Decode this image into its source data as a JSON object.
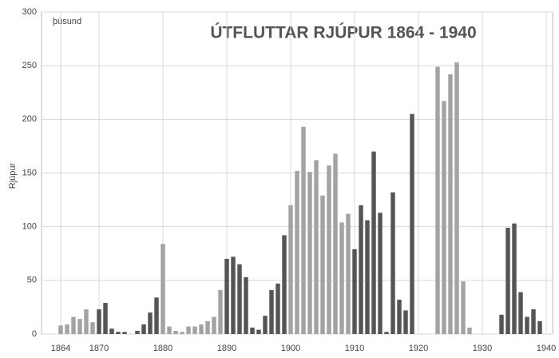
{
  "chart_data": {
    "type": "bar",
    "title": "ÚTFLUTTAR RJÚPUR  1864 - 1940",
    "unit_label": "þúsund",
    "y_label": "Rjúpur",
    "x": [
      1864,
      1865,
      1866,
      1867,
      1868,
      1869,
      1870,
      1871,
      1872,
      1873,
      1874,
      1875,
      1876,
      1877,
      1878,
      1879,
      1880,
      1881,
      1882,
      1883,
      1884,
      1885,
      1886,
      1887,
      1888,
      1889,
      1890,
      1891,
      1892,
      1893,
      1894,
      1895,
      1896,
      1897,
      1898,
      1899,
      1900,
      1901,
      1902,
      1903,
      1904,
      1905,
      1906,
      1907,
      1908,
      1909,
      1910,
      1911,
      1912,
      1913,
      1914,
      1915,
      1916,
      1917,
      1918,
      1919,
      1920,
      1921,
      1922,
      1923,
      1924,
      1925,
      1926,
      1927,
      1928,
      1929,
      1930,
      1931,
      1932,
      1933,
      1934,
      1935,
      1936,
      1937,
      1938,
      1939,
      1940
    ],
    "values": [
      8,
      9,
      16,
      14,
      23,
      11,
      23,
      29,
      5,
      2,
      2,
      0,
      3,
      9,
      20,
      34,
      84,
      7,
      3,
      2,
      7,
      7,
      9,
      12,
      16,
      41,
      70,
      72,
      65,
      53,
      6,
      4,
      17,
      41,
      47,
      92,
      120,
      152,
      193,
      151,
      162,
      129,
      157,
      168,
      104,
      112,
      79,
      120,
      106,
      170,
      113,
      2,
      132,
      32,
      22,
      205,
      0,
      0,
      0,
      249,
      217,
      242,
      253,
      49,
      6,
      0,
      0,
      0,
      0,
      18,
      99,
      103,
      39,
      16,
      23,
      12,
      0
    ],
    "colors": [
      "#a3a3a3",
      "#a3a3a3",
      "#a3a3a3",
      "#a3a3a3",
      "#a3a3a3",
      "#a3a3a3",
      "#555555",
      "#555555",
      "#555555",
      "#555555",
      "#555555",
      "#555555",
      "#555555",
      "#555555",
      "#555555",
      "#555555",
      "#a3a3a3",
      "#a3a3a3",
      "#a3a3a3",
      "#a3a3a3",
      "#a3a3a3",
      "#a3a3a3",
      "#a3a3a3",
      "#a3a3a3",
      "#a3a3a3",
      "#a3a3a3",
      "#555555",
      "#555555",
      "#555555",
      "#555555",
      "#555555",
      "#555555",
      "#555555",
      "#555555",
      "#555555",
      "#555555",
      "#a3a3a3",
      "#a3a3a3",
      "#a3a3a3",
      "#a3a3a3",
      "#a3a3a3",
      "#a3a3a3",
      "#a3a3a3",
      "#a3a3a3",
      "#a3a3a3",
      "#a3a3a3",
      "#555555",
      "#555555",
      "#555555",
      "#555555",
      "#555555",
      "#555555",
      "#555555",
      "#555555",
      "#555555",
      "#555555",
      "#a3a3a3",
      "#a3a3a3",
      "#a3a3a3",
      "#a3a3a3",
      "#a3a3a3",
      "#a3a3a3",
      "#a3a3a3",
      "#a3a3a3",
      "#a3a3a3",
      "#a3a3a3",
      "#555555",
      "#555555",
      "#555555",
      "#555555",
      "#555555",
      "#555555",
      "#555555",
      "#555555",
      "#555555",
      "#555555",
      "#555555"
    ],
    "xlim": [
      1861,
      1941
    ],
    "xticks": [
      1864,
      1870,
      1880,
      1890,
      1900,
      1910,
      1920,
      1930,
      1940
    ],
    "ylim": [
      0,
      300
    ],
    "yticks": [
      0,
      50,
      100,
      150,
      200,
      250,
      300
    ],
    "grid": true
  }
}
